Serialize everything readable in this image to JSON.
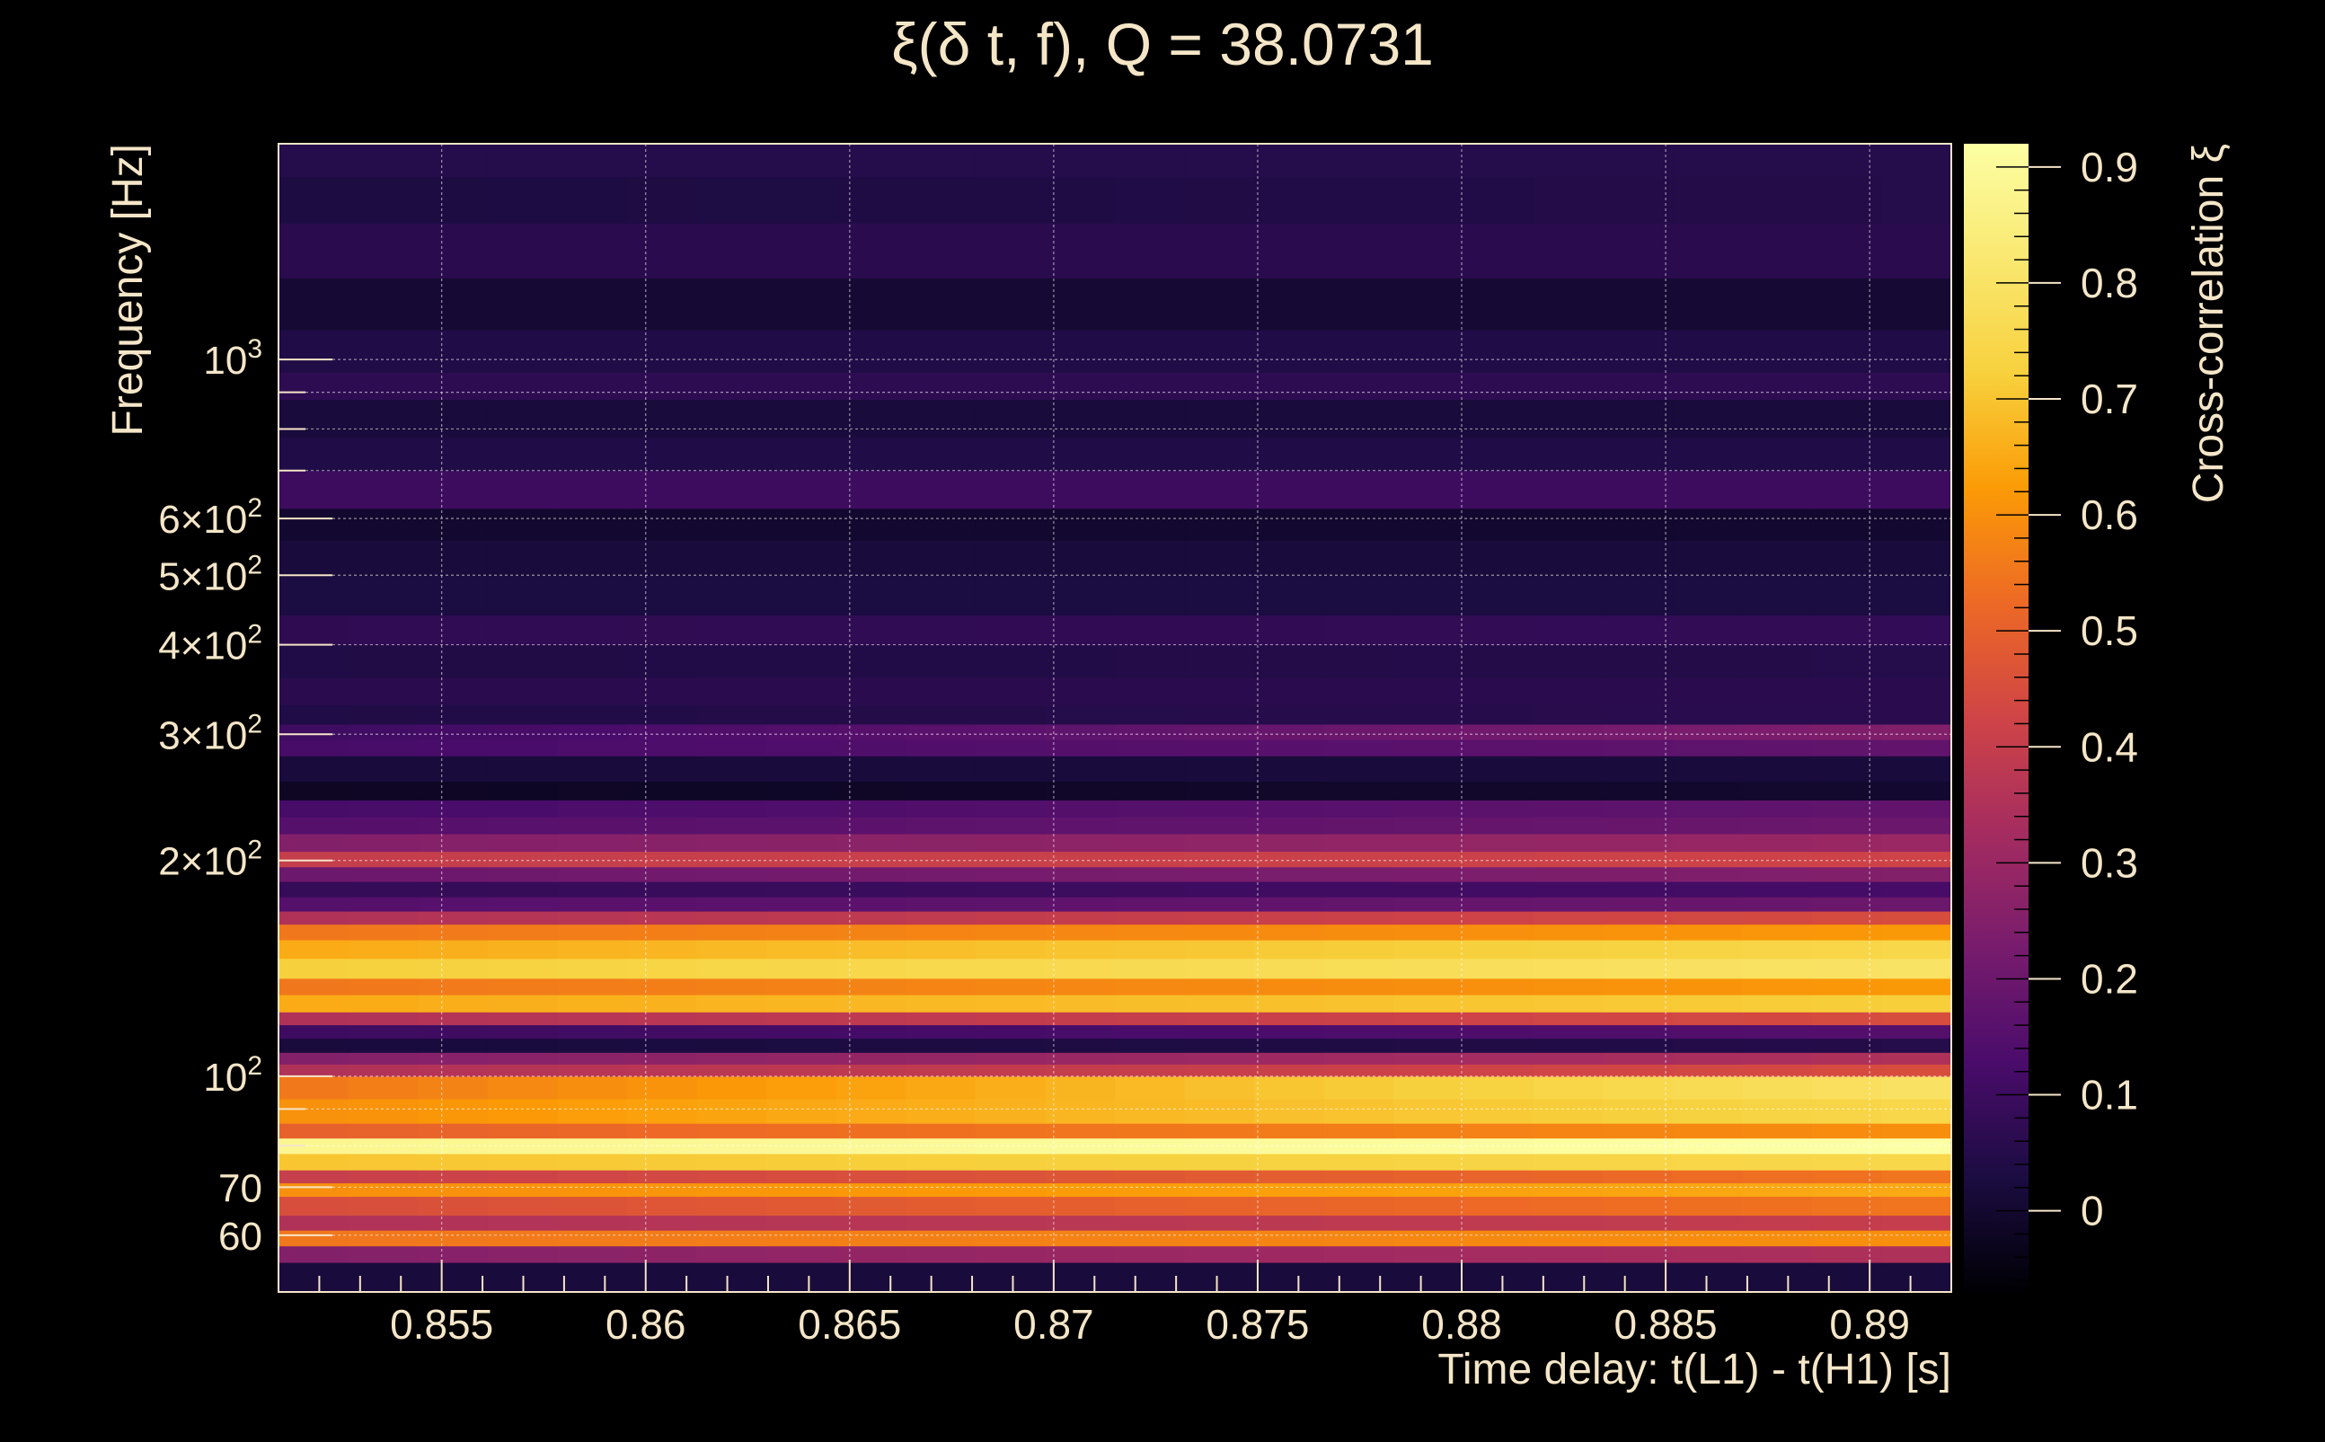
{
  "chart_data": {
    "type": "heatmap",
    "title": "ξ(δ t, f), Q = 38.0731",
    "xlabel": "Time delay: t(L1) - t(H1) [s]",
    "ylabel": "Frequency [Hz]",
    "colorbar_label": "Cross-correlation ξ",
    "x_scale": "linear",
    "y_scale": "log",
    "xlim": [
      0.851,
      0.892
    ],
    "ylim": [
      50,
      2000
    ],
    "zlim": [
      -0.07,
      0.92
    ],
    "grid": true,
    "colormap": "inferno",
    "x_ticks": [
      {
        "value": 0.855,
        "label": "0.855"
      },
      {
        "value": 0.86,
        "label": "0.86"
      },
      {
        "value": 0.865,
        "label": "0.865"
      },
      {
        "value": 0.87,
        "label": "0.87"
      },
      {
        "value": 0.875,
        "label": "0.875"
      },
      {
        "value": 0.88,
        "label": "0.88"
      },
      {
        "value": 0.885,
        "label": "0.885"
      },
      {
        "value": 0.89,
        "label": "0.89"
      }
    ],
    "y_ticks": [
      {
        "value": 60,
        "label": "60"
      },
      {
        "value": 70,
        "label": "70"
      },
      {
        "value": 100,
        "base": "10",
        "exp": "2"
      },
      {
        "value": 200,
        "base": "2×10",
        "exp": "2"
      },
      {
        "value": 300,
        "base": "3×10",
        "exp": "2"
      },
      {
        "value": 400,
        "base": "4×10",
        "exp": "2"
      },
      {
        "value": 500,
        "base": "5×10",
        "exp": "2"
      },
      {
        "value": 600,
        "base": "6×10",
        "exp": "2"
      },
      {
        "value": 1000,
        "base": "10",
        "exp": "3"
      }
    ],
    "y_minor_grid": [
      80,
      90,
      700,
      800,
      900
    ],
    "colorbar_ticks": [
      {
        "value": 0,
        "label": "0"
      },
      {
        "value": 0.1,
        "label": "0.1"
      },
      {
        "value": 0.2,
        "label": "0.2"
      },
      {
        "value": 0.3,
        "label": "0.3"
      },
      {
        "value": 0.4,
        "label": "0.4"
      },
      {
        "value": 0.5,
        "label": "0.5"
      },
      {
        "value": 0.6,
        "label": "0.6"
      },
      {
        "value": 0.7,
        "label": "0.7"
      },
      {
        "value": 0.8,
        "label": "0.8"
      },
      {
        "value": 0.9,
        "label": "0.9"
      }
    ],
    "frequency_bands": [
      {
        "f_low": 55,
        "f_high": 58,
        "xi_start": 0.25,
        "xi_end": 0.35
      },
      {
        "f_low": 58,
        "f_high": 61,
        "xi_start": 0.55,
        "xi_end": 0.6
      },
      {
        "f_low": 61,
        "f_high": 64,
        "xi_start": 0.35,
        "xi_end": 0.4
      },
      {
        "f_low": 64,
        "f_high": 68,
        "xi_start": 0.45,
        "xi_end": 0.55
      },
      {
        "f_low": 68,
        "f_high": 71,
        "xi_start": 0.6,
        "xi_end": 0.65
      },
      {
        "f_low": 71,
        "f_high": 74,
        "xi_start": 0.4,
        "xi_end": 0.55
      },
      {
        "f_low": 74,
        "f_high": 78,
        "xi_start": 0.7,
        "xi_end": 0.75
      },
      {
        "f_low": 78,
        "f_high": 82,
        "xi_start": 0.88,
        "xi_end": 0.92
      },
      {
        "f_low": 82,
        "f_high": 86,
        "xi_start": 0.5,
        "xi_end": 0.6
      },
      {
        "f_low": 86,
        "f_high": 93,
        "xi_start": 0.6,
        "xi_end": 0.75
      },
      {
        "f_low": 93,
        "f_high": 100,
        "xi_start": 0.55,
        "xi_end": 0.8
      },
      {
        "f_low": 100,
        "f_high": 104,
        "xi_start": 0.35,
        "xi_end": 0.45
      },
      {
        "f_low": 104,
        "f_high": 108,
        "xi_start": 0.25,
        "xi_end": 0.35
      },
      {
        "f_low": 108,
        "f_high": 113,
        "xi_start": 0.02,
        "xi_end": 0.05
      },
      {
        "f_low": 113,
        "f_high": 118,
        "xi_start": 0.1,
        "xi_end": 0.15
      },
      {
        "f_low": 118,
        "f_high": 123,
        "xi_start": 0.35,
        "xi_end": 0.45
      },
      {
        "f_low": 123,
        "f_high": 130,
        "xi_start": 0.65,
        "xi_end": 0.72
      },
      {
        "f_low": 130,
        "f_high": 137,
        "xi_start": 0.55,
        "xi_end": 0.62
      },
      {
        "f_low": 137,
        "f_high": 146,
        "xi_start": 0.72,
        "xi_end": 0.8
      },
      {
        "f_low": 146,
        "f_high": 155,
        "xi_start": 0.65,
        "xi_end": 0.75
      },
      {
        "f_low": 155,
        "f_high": 163,
        "xi_start": 0.55,
        "xi_end": 0.62
      },
      {
        "f_low": 163,
        "f_high": 170,
        "xi_start": 0.35,
        "xi_end": 0.45
      },
      {
        "f_low": 170,
        "f_high": 178,
        "xi_start": 0.15,
        "xi_end": 0.2
      },
      {
        "f_low": 178,
        "f_high": 187,
        "xi_start": 0.08,
        "xi_end": 0.12
      },
      {
        "f_low": 187,
        "f_high": 196,
        "xi_start": 0.2,
        "xi_end": 0.25
      },
      {
        "f_low": 196,
        "f_high": 206,
        "xi_start": 0.4,
        "xi_end": 0.42
      },
      {
        "f_low": 206,
        "f_high": 218,
        "xi_start": 0.25,
        "xi_end": 0.3
      },
      {
        "f_low": 218,
        "f_high": 230,
        "xi_start": 0.15,
        "xi_end": 0.2
      },
      {
        "f_low": 230,
        "f_high": 243,
        "xi_start": 0.12,
        "xi_end": 0.18
      },
      {
        "f_low": 243,
        "f_high": 258,
        "xi_start": -0.02,
        "xi_end": 0.0
      },
      {
        "f_low": 258,
        "f_high": 280,
        "xi_start": 0.02,
        "xi_end": 0.02
      },
      {
        "f_low": 280,
        "f_high": 295,
        "xi_start": 0.12,
        "xi_end": 0.18
      },
      {
        "f_low": 295,
        "f_high": 310,
        "xi_start": 0.1,
        "xi_end": 0.25
      },
      {
        "f_low": 310,
        "f_high": 330,
        "xi_start": 0.04,
        "xi_end": 0.06
      },
      {
        "f_low": 330,
        "f_high": 360,
        "xi_start": 0.06,
        "xi_end": 0.06
      },
      {
        "f_low": 360,
        "f_high": 400,
        "xi_start": 0.04,
        "xi_end": 0.05
      },
      {
        "f_low": 400,
        "f_high": 440,
        "xi_start": 0.07,
        "xi_end": 0.08
      },
      {
        "f_low": 440,
        "f_high": 500,
        "xi_start": 0.03,
        "xi_end": 0.03
      },
      {
        "f_low": 500,
        "f_high": 560,
        "xi_start": 0.02,
        "xi_end": 0.02
      },
      {
        "f_low": 560,
        "f_high": 620,
        "xi_start": 0.0,
        "xi_end": 0.0
      },
      {
        "f_low": 620,
        "f_high": 700,
        "xi_start": 0.1,
        "xi_end": 0.1
      },
      {
        "f_low": 700,
        "f_high": 780,
        "xi_start": 0.04,
        "xi_end": 0.04
      },
      {
        "f_low": 780,
        "f_high": 880,
        "xi_start": 0.02,
        "xi_end": 0.02
      },
      {
        "f_low": 880,
        "f_high": 960,
        "xi_start": 0.07,
        "xi_end": 0.07
      },
      {
        "f_low": 960,
        "f_high": 1100,
        "xi_start": 0.04,
        "xi_end": 0.04
      },
      {
        "f_low": 1100,
        "f_high": 1300,
        "xi_start": 0.01,
        "xi_end": 0.01
      },
      {
        "f_low": 1300,
        "f_high": 1550,
        "xi_start": 0.06,
        "xi_end": 0.06
      },
      {
        "f_low": 1550,
        "f_high": 1800,
        "xi_start": 0.03,
        "xi_end": 0.05
      },
      {
        "f_low": 1800,
        "f_high": 2000,
        "xi_start": 0.05,
        "xi_end": 0.05
      }
    ]
  }
}
